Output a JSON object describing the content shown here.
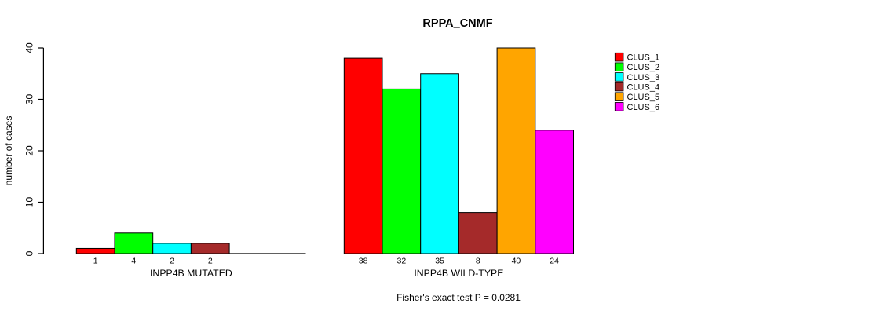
{
  "chart_data": {
    "type": "bar",
    "title": "RPPA_CNMF",
    "ylabel": "number of cases",
    "xlabel": "",
    "ylim": [
      0,
      40
    ],
    "yticks": [
      0,
      10,
      20,
      30,
      40
    ],
    "grid": false,
    "legend_position": "right",
    "bar_colors": [
      "#FF0000",
      "#00FF00",
      "#00FFFF",
      "#A52A2A",
      "#FFA500",
      "#FF00FF"
    ],
    "legend_entries": [
      {
        "label": "CLUS_1",
        "color": "#FF0000"
      },
      {
        "label": "CLUS_2",
        "color": "#00FF00"
      },
      {
        "label": "CLUS_3",
        "color": "#00FFFF"
      },
      {
        "label": "CLUS_4",
        "color": "#A52A2A"
      },
      {
        "label": "CLUS_5",
        "color": "#FFA500"
      },
      {
        "label": "CLUS_6",
        "color": "#FF00FF"
      }
    ],
    "groups": [
      {
        "label": "INPP4B MUTATED",
        "values": [
          1,
          4,
          2,
          2,
          0,
          0
        ],
        "bar_labels": [
          "1",
          "4",
          "2",
          "2",
          "",
          ""
        ]
      },
      {
        "label": "INPP4B WILD-TYPE",
        "values": [
          38,
          32,
          35,
          8,
          40,
          24
        ],
        "bar_labels": [
          "38",
          "32",
          "35",
          "8",
          "40",
          "24"
        ]
      }
    ],
    "footer": "Fisher's exact test P = 0.0281"
  }
}
